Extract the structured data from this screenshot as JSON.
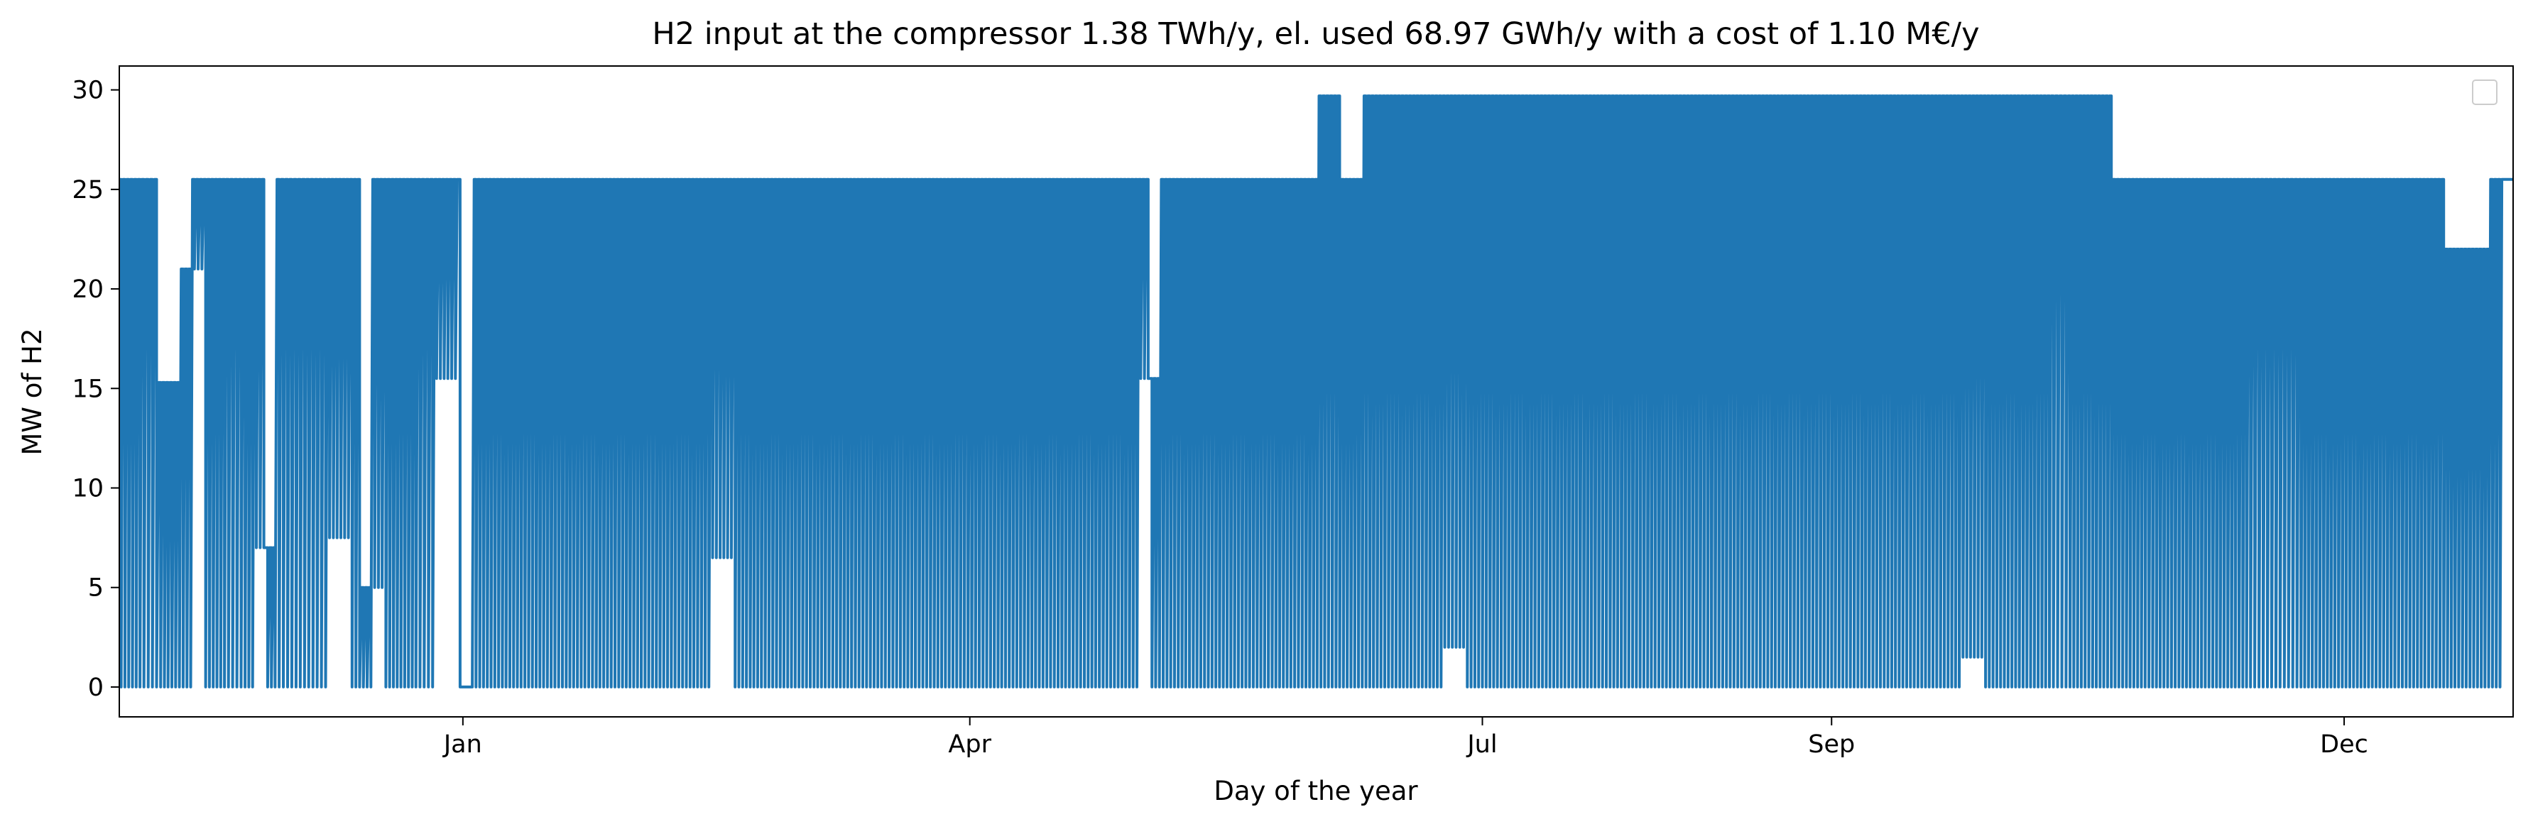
{
  "chart_data": {
    "type": "line",
    "title": "H2 input at the compressor 1.38 TWh/y, el. used 68.97 GWh/y with a cost of 1.10 M€/y",
    "xlabel": "Day of the year",
    "ylabel": "MW of H2",
    "xlim": [
      "2022-11-01",
      "2023-12-31"
    ],
    "ylim": [
      -1.5,
      31.2
    ],
    "x_ticks": [
      {
        "label": "Jan",
        "date": "2023-01-01"
      },
      {
        "label": "Apr",
        "date": "2023-04-01"
      },
      {
        "label": "Jul",
        "date": "2023-07-01"
      },
      {
        "label": "Sep",
        "date": "2023-09-01"
      },
      {
        "label": "Dec",
        "date": "2023-12-01"
      }
    ],
    "y_ticks": [
      0,
      5,
      10,
      15,
      20,
      25,
      30
    ],
    "grid": false,
    "legend": {
      "placement": "top-right",
      "entries": []
    },
    "line_color": "#1f77b4",
    "series": [
      {
        "values": [
          [
            "2022-11-01",
            25.5
          ],
          [
            "2022-11-03",
            0
          ],
          [
            "2022-11-05",
            25.5
          ],
          [
            "2022-11-08",
            0
          ],
          [
            "2022-11-10",
            15.3
          ],
          [
            "2022-11-12",
            0
          ],
          [
            "2022-11-14",
            21
          ],
          [
            "2022-11-16",
            25.5
          ],
          [
            "2022-11-18",
            0
          ],
          [
            "2022-11-20",
            25.5
          ],
          [
            "2022-11-23",
            0
          ],
          [
            "2022-11-25",
            25.5
          ],
          [
            "2022-11-27",
            7
          ],
          [
            "2022-11-29",
            0
          ],
          [
            "2022-12-08",
            25.5
          ],
          [
            "2022-12-10",
            7.5
          ],
          [
            "2022-12-12",
            25.5
          ],
          [
            "2022-12-14",
            0
          ],
          [
            "2022-12-16",
            5
          ],
          [
            "2022-12-18",
            25.5
          ],
          [
            "2022-12-20",
            0
          ],
          [
            "2022-12-22",
            25.5
          ],
          [
            "2022-12-24",
            0
          ],
          [
            "2022-12-27",
            25.5
          ],
          [
            "2022-12-29",
            15.5
          ],
          [
            "2022-12-31",
            25.5
          ],
          [
            "2023-01-01",
            0
          ],
          [
            "2023-01-03",
            0
          ],
          [
            "2023-01-05",
            25.5
          ],
          [
            "2023-01-07",
            0
          ],
          [
            "2023-01-09",
            25.5
          ],
          [
            "2023-01-11",
            0
          ],
          [
            "2023-01-13",
            25.5
          ],
          [
            "2023-01-15",
            0
          ],
          [
            "2023-01-17",
            25.5
          ],
          [
            "2023-01-19",
            0
          ],
          [
            "2023-01-21",
            25.5
          ],
          [
            "2023-01-23",
            0
          ],
          [
            "2023-01-25",
            25.5
          ],
          [
            "2023-01-27",
            0
          ],
          [
            "2023-01-29",
            25.5
          ],
          [
            "2023-01-31",
            0
          ],
          [
            "2023-02-02",
            25.5
          ],
          [
            "2023-02-04",
            0
          ],
          [
            "2023-02-06",
            25.5
          ],
          [
            "2023-02-08",
            0
          ],
          [
            "2023-02-10",
            25.5
          ],
          [
            "2023-02-12",
            0
          ],
          [
            "2023-02-14",
            25.5
          ],
          [
            "2023-02-16",
            6.5
          ],
          [
            "2023-02-18",
            25.5
          ],
          [
            "2023-02-20",
            0
          ],
          [
            "2023-02-22",
            25.5
          ],
          [
            "2023-02-24",
            0
          ],
          [
            "2023-02-26",
            25.5
          ],
          [
            "2023-02-28",
            0
          ],
          [
            "2023-03-02",
            25.5
          ],
          [
            "2023-03-04",
            0
          ],
          [
            "2023-03-06",
            25.5
          ],
          [
            "2023-03-08",
            0
          ],
          [
            "2023-03-10",
            25.5
          ],
          [
            "2023-03-12",
            0
          ],
          [
            "2023-03-14",
            25.5
          ],
          [
            "2023-03-16",
            0
          ],
          [
            "2023-03-18",
            25.5
          ],
          [
            "2023-03-20",
            0
          ],
          [
            "2023-03-22",
            25.5
          ],
          [
            "2023-03-24",
            0
          ],
          [
            "2023-03-26",
            25.5
          ],
          [
            "2023-03-28",
            0
          ],
          [
            "2023-03-30",
            25.5
          ],
          [
            "2023-04-01",
            0
          ],
          [
            "2023-04-03",
            25.5
          ],
          [
            "2023-04-05",
            0
          ],
          [
            "2023-04-07",
            25.5
          ],
          [
            "2023-04-09",
            0
          ],
          [
            "2023-04-11",
            25.5
          ],
          [
            "2023-04-13",
            0
          ],
          [
            "2023-04-15",
            25.5
          ],
          [
            "2023-04-17",
            0
          ],
          [
            "2023-04-19",
            25.5
          ],
          [
            "2023-04-21",
            0
          ],
          [
            "2023-04-23",
            25.5
          ],
          [
            "2023-04-25",
            0
          ],
          [
            "2023-04-27",
            25.5
          ],
          [
            "2023-04-29",
            0
          ],
          [
            "2023-05-01",
            25.5
          ],
          [
            "2023-05-03",
            15.5
          ],
          [
            "2023-05-05",
            0
          ],
          [
            "2023-05-07",
            25.5
          ],
          [
            "2023-05-09",
            0
          ],
          [
            "2023-05-11",
            25.5
          ],
          [
            "2023-05-13",
            0
          ],
          [
            "2023-05-15",
            25.5
          ],
          [
            "2023-05-17",
            0
          ],
          [
            "2023-05-19",
            25.5
          ],
          [
            "2023-05-21",
            0
          ],
          [
            "2023-05-23",
            25.5
          ],
          [
            "2023-05-25",
            0
          ],
          [
            "2023-05-27",
            25.5
          ],
          [
            "2023-05-29",
            0
          ],
          [
            "2023-05-31",
            25.5
          ],
          [
            "2023-06-02",
            0
          ],
          [
            "2023-06-04",
            29.7
          ],
          [
            "2023-06-06",
            0
          ],
          [
            "2023-06-08",
            25.5
          ],
          [
            "2023-06-10",
            0
          ],
          [
            "2023-06-12",
            29.7
          ],
          [
            "2023-06-14",
            0
          ],
          [
            "2023-06-16",
            29.7
          ],
          [
            "2023-06-18",
            0
          ],
          [
            "2023-06-20",
            29.7
          ],
          [
            "2023-06-22",
            0
          ],
          [
            "2023-06-24",
            29.7
          ],
          [
            "2023-06-26",
            2
          ],
          [
            "2023-06-28",
            29.7
          ],
          [
            "2023-06-30",
            0
          ],
          [
            "2023-07-02",
            29.7
          ],
          [
            "2023-07-04",
            0
          ],
          [
            "2023-07-06",
            29.7
          ],
          [
            "2023-07-08",
            0
          ],
          [
            "2023-07-10",
            29.7
          ],
          [
            "2023-07-12",
            0
          ],
          [
            "2023-07-14",
            29.7
          ],
          [
            "2023-07-16",
            0
          ],
          [
            "2023-07-18",
            29.7
          ],
          [
            "2023-07-20",
            0
          ],
          [
            "2023-07-22",
            29.7
          ],
          [
            "2023-07-24",
            0
          ],
          [
            "2023-07-26",
            29.7
          ],
          [
            "2023-07-28",
            0
          ],
          [
            "2023-07-30",
            29.7
          ],
          [
            "2023-08-01",
            0
          ],
          [
            "2023-08-03",
            29.7
          ],
          [
            "2023-08-05",
            0
          ],
          [
            "2023-08-07",
            29.7
          ],
          [
            "2023-08-09",
            0
          ],
          [
            "2023-08-11",
            29.7
          ],
          [
            "2023-08-13",
            0
          ],
          [
            "2023-08-15",
            29.7
          ],
          [
            "2023-08-17",
            0
          ],
          [
            "2023-08-19",
            29.7
          ],
          [
            "2023-08-21",
            0
          ],
          [
            "2023-08-23",
            29.7
          ],
          [
            "2023-08-25",
            0
          ],
          [
            "2023-08-27",
            29.7
          ],
          [
            "2023-08-29",
            0
          ],
          [
            "2023-08-31",
            29.7
          ],
          [
            "2023-09-02",
            0
          ],
          [
            "2023-09-04",
            29.7
          ],
          [
            "2023-09-06",
            0
          ],
          [
            "2023-09-08",
            29.7
          ],
          [
            "2023-09-10",
            0
          ],
          [
            "2023-09-12",
            29.7
          ],
          [
            "2023-09-14",
            0
          ],
          [
            "2023-09-16",
            29.7
          ],
          [
            "2023-09-18",
            0
          ],
          [
            "2023-09-20",
            29.7
          ],
          [
            "2023-09-22",
            0
          ],
          [
            "2023-09-24",
            29.7
          ],
          [
            "2023-09-26",
            1.5
          ],
          [
            "2023-09-28",
            29.7
          ],
          [
            "2023-09-30",
            0
          ],
          [
            "2023-10-02",
            29.7
          ],
          [
            "2023-10-04",
            0
          ],
          [
            "2023-10-06",
            29.7
          ],
          [
            "2023-10-08",
            0
          ],
          [
            "2023-10-10",
            29.7
          ],
          [
            "2023-10-13",
            0
          ],
          [
            "2023-10-15",
            29.7
          ],
          [
            "2023-10-17",
            0
          ],
          [
            "2023-10-19",
            29.7
          ],
          [
            "2023-10-21",
            0
          ],
          [
            "2023-10-23",
            25.5
          ],
          [
            "2023-10-25",
            0
          ],
          [
            "2023-10-27",
            25.5
          ],
          [
            "2023-10-29",
            0
          ],
          [
            "2023-10-31",
            25.5
          ],
          [
            "2023-11-02",
            0
          ],
          [
            "2023-11-04",
            25.5
          ],
          [
            "2023-11-06",
            0
          ],
          [
            "2023-11-08",
            25.5
          ],
          [
            "2023-11-10",
            0
          ],
          [
            "2023-11-12",
            25.5
          ],
          [
            "2023-11-14",
            0
          ],
          [
            "2023-11-23",
            25.5
          ],
          [
            "2023-11-25",
            0
          ],
          [
            "2023-11-27",
            25.5
          ],
          [
            "2023-11-29",
            0
          ],
          [
            "2023-12-01",
            25.5
          ],
          [
            "2023-12-03",
            0
          ],
          [
            "2023-12-05",
            25.5
          ],
          [
            "2023-12-07",
            0
          ],
          [
            "2023-12-09",
            25.5
          ],
          [
            "2023-12-11",
            0
          ],
          [
            "2023-12-13",
            25.5
          ],
          [
            "2023-12-15",
            0
          ],
          [
            "2023-12-17",
            25.5
          ],
          [
            "2023-12-19",
            0
          ],
          [
            "2023-12-21",
            22
          ],
          [
            "2023-12-23",
            0
          ],
          [
            "2023-12-25",
            22
          ],
          [
            "2023-12-27",
            0
          ],
          [
            "2023-12-29",
            25.5
          ],
          [
            "2023-12-31",
            25.5
          ]
        ]
      }
    ]
  }
}
